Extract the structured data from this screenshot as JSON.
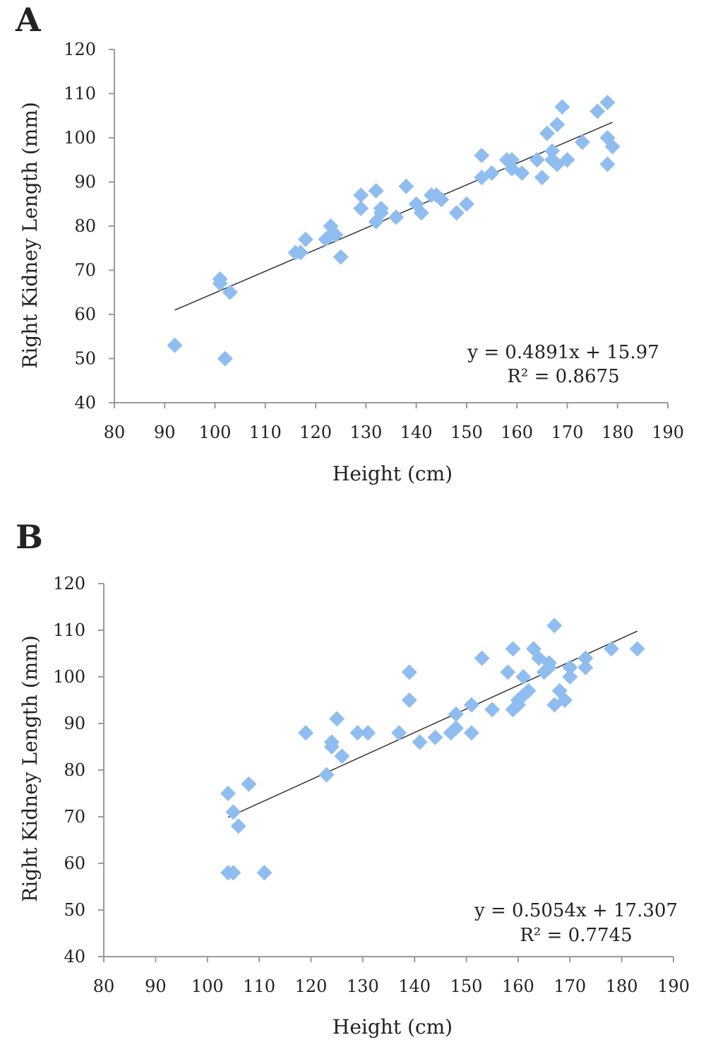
{
  "chart_data": [
    {
      "type": "scatter",
      "panel_label": "A",
      "xlabel": "Height (cm)",
      "ylabel": "Right Kidney Length (mm)",
      "xlim": [
        80,
        190
      ],
      "ylim": [
        40,
        120
      ],
      "xticks": [
        80,
        90,
        100,
        110,
        120,
        130,
        140,
        150,
        160,
        170,
        180,
        190
      ],
      "yticks": [
        40,
        50,
        60,
        70,
        80,
        90,
        100,
        110,
        120
      ],
      "grid": false,
      "marker": "diamond",
      "marker_color": "#8fbdf0",
      "trendline": {
        "slope": 0.4891,
        "intercept": 15.97,
        "x_range": [
          92,
          179
        ]
      },
      "equation": "y = 0.4891x + 15.97",
      "r_squared_label": "R² = 0.8675",
      "points": [
        [
          92,
          53
        ],
        [
          101,
          68
        ],
        [
          101,
          67
        ],
        [
          103,
          65
        ],
        [
          102,
          50
        ],
        [
          116,
          74
        ],
        [
          117,
          74
        ],
        [
          118,
          77
        ],
        [
          122,
          77
        ],
        [
          123,
          80
        ],
        [
          124,
          78
        ],
        [
          123,
          78
        ],
        [
          125,
          73
        ],
        [
          129,
          87
        ],
        [
          129,
          84
        ],
        [
          132,
          88
        ],
        [
          132,
          81
        ],
        [
          133,
          84
        ],
        [
          133,
          83
        ],
        [
          136,
          82
        ],
        [
          138,
          89
        ],
        [
          140,
          85
        ],
        [
          141,
          83
        ],
        [
          143,
          87
        ],
        [
          144,
          87
        ],
        [
          145,
          86
        ],
        [
          148,
          83
        ],
        [
          150,
          85
        ],
        [
          153,
          96
        ],
        [
          153,
          91
        ],
        [
          155,
          92
        ],
        [
          158,
          95
        ],
        [
          159,
          95
        ],
        [
          159,
          93
        ],
        [
          161,
          92
        ],
        [
          164,
          95
        ],
        [
          165,
          91
        ],
        [
          166,
          101
        ],
        [
          167,
          97
        ],
        [
          167,
          95
        ],
        [
          168,
          103
        ],
        [
          168,
          94
        ],
        [
          169,
          107
        ],
        [
          170,
          95
        ],
        [
          173,
          99
        ],
        [
          176,
          106
        ],
        [
          178,
          108
        ],
        [
          178,
          100
        ],
        [
          178,
          94
        ],
        [
          179,
          98
        ]
      ]
    },
    {
      "type": "scatter",
      "panel_label": "B",
      "xlabel": "Height (cm)",
      "ylabel": "Right Kidney Length (mm)",
      "xlim": [
        80,
        190
      ],
      "ylim": [
        40,
        120
      ],
      "xticks": [
        80,
        90,
        100,
        110,
        120,
        130,
        140,
        150,
        160,
        170,
        180,
        190
      ],
      "yticks": [
        40,
        50,
        60,
        70,
        80,
        90,
        100,
        110,
        120
      ],
      "grid": false,
      "marker": "diamond",
      "marker_color": "#8fbdf0",
      "trendline": {
        "slope": 0.5054,
        "intercept": 17.307,
        "x_range": [
          104,
          183
        ]
      },
      "equation": "y = 0.5054x + 17.307",
      "r_squared_label": "R² = 0.7745",
      "points": [
        [
          104,
          75
        ],
        [
          105,
          71
        ],
        [
          106,
          68
        ],
        [
          104,
          58
        ],
        [
          105,
          58
        ],
        [
          108,
          77
        ],
        [
          111,
          58
        ],
        [
          119,
          88
        ],
        [
          123,
          79
        ],
        [
          124,
          86
        ],
        [
          124,
          85
        ],
        [
          125,
          91
        ],
        [
          126,
          83
        ],
        [
          129,
          88
        ],
        [
          131,
          88
        ],
        [
          137,
          88
        ],
        [
          139,
          101
        ],
        [
          139,
          95
        ],
        [
          141,
          86
        ],
        [
          144,
          87
        ],
        [
          147,
          88
        ],
        [
          148,
          89
        ],
        [
          148,
          92
        ],
        [
          151,
          94
        ],
        [
          151,
          88
        ],
        [
          153,
          104
        ],
        [
          155,
          93
        ],
        [
          158,
          101
        ],
        [
          159,
          106
        ],
        [
          159,
          93
        ],
        [
          160,
          95
        ],
        [
          160,
          94
        ],
        [
          161,
          96
        ],
        [
          161,
          100
        ],
        [
          162,
          97
        ],
        [
          163,
          106
        ],
        [
          164,
          104
        ],
        [
          165,
          101
        ],
        [
          166,
          102
        ],
        [
          166,
          103
        ],
        [
          167,
          111
        ],
        [
          167,
          94
        ],
        [
          168,
          97
        ],
        [
          169,
          95
        ],
        [
          170,
          102
        ],
        [
          170,
          100
        ],
        [
          173,
          104
        ],
        [
          173,
          102
        ],
        [
          178,
          106
        ],
        [
          183,
          106
        ]
      ]
    }
  ]
}
